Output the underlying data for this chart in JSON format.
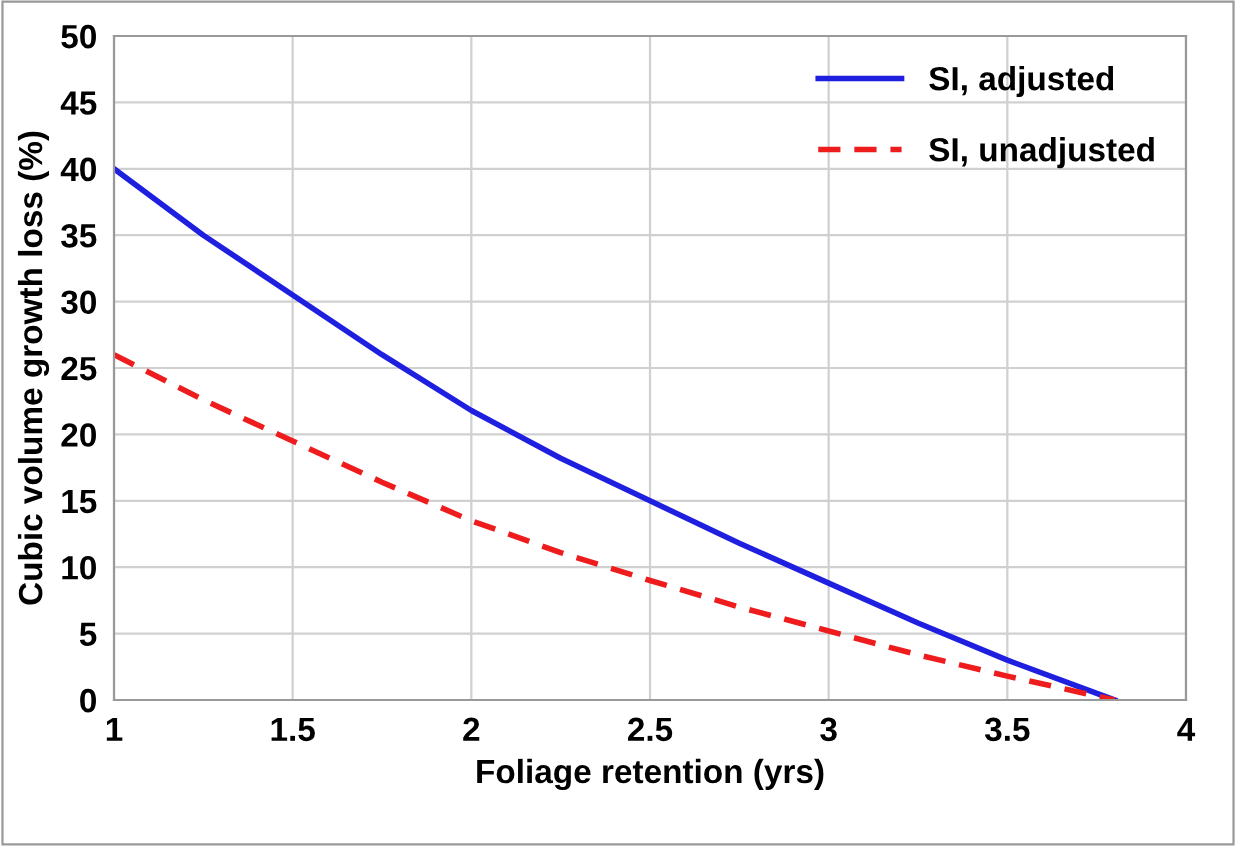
{
  "chart_data": {
    "type": "line",
    "xlabel": "Foliage retention (yrs)",
    "ylabel": "Cubic volume growth loss (%)",
    "x": [
      1,
      1.25,
      1.5,
      1.75,
      2,
      2.25,
      2.5,
      2.75,
      3,
      3.25,
      3.5,
      3.8
    ],
    "series": [
      {
        "name": "SI, adjusted",
        "color": "#1f1fe0",
        "line_style": "solid",
        "values": [
          40,
          35,
          30.5,
          26,
          21.8,
          18.2,
          15,
          11.8,
          8.8,
          5.8,
          3,
          0
        ]
      },
      {
        "name": "SI, unadjusted",
        "color": "#ee1c1c",
        "line_style": "dashed",
        "values": [
          26,
          22.6,
          19.5,
          16.4,
          13.5,
          11.1,
          9,
          7,
          5.2,
          3.4,
          1.8,
          0
        ]
      }
    ],
    "xlim": [
      1,
      4
    ],
    "xticks": [
      1,
      1.5,
      2,
      2.5,
      3,
      3.5,
      4
    ],
    "ylim": [
      0,
      50
    ],
    "yticks": [
      0,
      5,
      10,
      15,
      20,
      25,
      30,
      35,
      40,
      45,
      50
    ],
    "grid": true,
    "legend": "top right",
    "marker": "none"
  }
}
